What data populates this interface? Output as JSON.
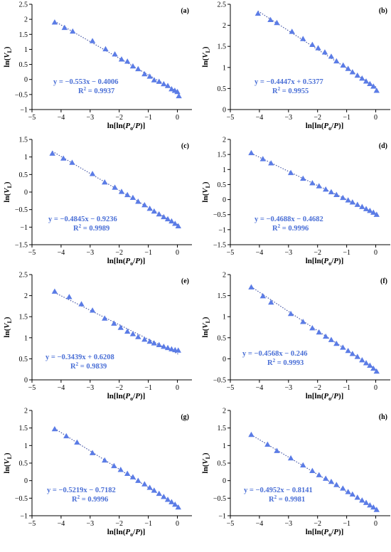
{
  "colors": {
    "marker": "#5b7ce6",
    "fit_line": "#4a5aa8",
    "equation": "#4a6fd6"
  },
  "chart_data": [
    {
      "type": "scatter",
      "panel": "(a)",
      "xlabel_base": "ln[ln(",
      "xlabel_var": "P",
      "xlabel_sub": "o",
      "xlabel_mid": "/",
      "xlabel_var2": "P",
      "xlabel_end": ")]",
      "ylabel_base": "ln(",
      "ylabel_var": "V",
      "ylabel_sub": "L",
      "ylabel_end": ")",
      "xlim": [
        -5,
        0.5
      ],
      "ylim": [
        -1,
        2.5
      ],
      "xticks": [
        "−5",
        "−4",
        "−3",
        "−2",
        "−1",
        "0"
      ],
      "yticks": [
        "−1",
        "−0.5",
        "0",
        "0.5",
        "1",
        "1.5",
        "2",
        "2.5"
      ],
      "x": [
        -4.22,
        -3.88,
        -3.6,
        -2.92,
        -2.47,
        -2.15,
        -1.92,
        -1.72,
        -1.53,
        -1.35,
        -1.13,
        -0.95,
        -0.8,
        -0.63,
        -0.47,
        -0.33,
        -0.2,
        -0.09,
        0.0,
        0.05
      ],
      "y": [
        1.9,
        1.72,
        1.6,
        1.28,
        1.01,
        0.84,
        0.67,
        0.6,
        0.44,
        0.35,
        0.18,
        0.1,
        -0.02,
        -0.07,
        -0.15,
        -0.21,
        -0.32,
        -0.37,
        -0.41,
        -0.55
      ],
      "fit": {
        "slope": -0.553,
        "intercept": -0.4006
      },
      "equation": "y = −0.553x − 0.4006",
      "r2_base": "R",
      "r2_exp": "2",
      "r2_value": " = 0.9937"
    },
    {
      "type": "scatter",
      "panel": "(b)",
      "xlabel_base": "ln[ln(",
      "xlabel_var": "P",
      "xlabel_sub": "o",
      "xlabel_mid": "/",
      "xlabel_var2": "P",
      "xlabel_end": ")]",
      "ylabel_base": "ln(",
      "ylabel_var": "V",
      "ylabel_sub": "L",
      "ylabel_end": ")",
      "xlim": [
        -5,
        0.5
      ],
      "ylim": [
        0,
        2.5
      ],
      "xticks": [
        "−5",
        "−4",
        "−3",
        "−2",
        "−1",
        "0"
      ],
      "yticks": [
        "0",
        "0.5",
        "1",
        "1.5",
        "2",
        "2.5"
      ],
      "x": [
        -4.05,
        -3.62,
        -3.4,
        -2.88,
        -2.5,
        -2.18,
        -1.98,
        -1.75,
        -1.53,
        -1.35,
        -1.12,
        -0.95,
        -0.8,
        -0.63,
        -0.47,
        -0.33,
        -0.2,
        -0.08,
        0.03
      ],
      "y": [
        2.28,
        2.13,
        2.06,
        1.85,
        1.68,
        1.54,
        1.46,
        1.36,
        1.26,
        1.15,
        1.05,
        0.97,
        0.89,
        0.81,
        0.74,
        0.67,
        0.61,
        0.55,
        0.45
      ],
      "fit": {
        "slope": -0.4447,
        "intercept": 0.5377
      },
      "equation": "y = −0.4447x + 0.5377",
      "r2_base": "R",
      "r2_exp": "2",
      "r2_value": " = 0.9955"
    },
    {
      "type": "scatter",
      "panel": "(c)",
      "xlabel_base": "ln[ln(",
      "xlabel_var": "P",
      "xlabel_sub": "o",
      "xlabel_mid": "/",
      "xlabel_var2": "P",
      "xlabel_end": ")]",
      "ylabel_base": "ln(",
      "ylabel_var": "V",
      "ylabel_sub": "L",
      "ylabel_end": ")",
      "xlim": [
        -5,
        0.5
      ],
      "ylim": [
        -1.5,
        1.5
      ],
      "xticks": [
        "−5",
        "−4",
        "−3",
        "−2",
        "−1",
        "0"
      ],
      "yticks": [
        "−1.5",
        "−1",
        "−0.5",
        "0",
        "0.5",
        "1",
        "1.5"
      ],
      "x": [
        -4.3,
        -3.92,
        -3.62,
        -2.92,
        -2.5,
        -2.15,
        -1.92,
        -1.72,
        -1.53,
        -1.35,
        -1.13,
        -0.95,
        -0.8,
        -0.63,
        -0.47,
        -0.33,
        -0.2,
        -0.08,
        0.03
      ],
      "y": [
        1.1,
        0.96,
        0.84,
        0.52,
        0.28,
        0.13,
        0.01,
        -0.08,
        -0.16,
        -0.27,
        -0.37,
        -0.47,
        -0.55,
        -0.63,
        -0.71,
        -0.77,
        -0.83,
        -0.9,
        -0.97
      ],
      "fit": {
        "slope": -0.4845,
        "intercept": -0.9236
      },
      "equation": "y = −0.4845x − 0.9236",
      "r2_base": "R",
      "r2_exp": "2",
      "r2_value": " = 0.9989"
    },
    {
      "type": "scatter",
      "panel": "(d)",
      "xlabel_base": "ln[ln(",
      "xlabel_var": "P",
      "xlabel_sub": "o",
      "xlabel_mid": "/",
      "xlabel_var2": "P",
      "xlabel_end": ")]",
      "ylabel_base": "ln(",
      "ylabel_var": "V",
      "ylabel_sub": "L",
      "ylabel_end": ")",
      "xlim": [
        -5,
        0.5
      ],
      "ylim": [
        -1.5,
        2
      ],
      "xticks": [
        "−5",
        "−4",
        "−3",
        "−2",
        "−1",
        "0"
      ],
      "yticks": [
        "−1.5",
        "−1",
        "−0.5",
        "0",
        "0.5",
        "1",
        "1.5",
        "2"
      ],
      "x": [
        -4.28,
        -3.88,
        -3.6,
        -2.92,
        -2.5,
        -2.18,
        -1.95,
        -1.72,
        -1.53,
        -1.35,
        -1.13,
        -0.95,
        -0.8,
        -0.63,
        -0.47,
        -0.33,
        -0.2,
        -0.08,
        0.03
      ],
      "y": [
        1.55,
        1.35,
        1.21,
        0.89,
        0.7,
        0.55,
        0.45,
        0.34,
        0.25,
        0.16,
        0.06,
        -0.02,
        -0.09,
        -0.17,
        -0.24,
        -0.31,
        -0.37,
        -0.43,
        -0.5
      ],
      "fit": {
        "slope": -0.4688,
        "intercept": -0.4682
      },
      "equation": "y = −0.4688x − 0.4682",
      "r2_base": "R",
      "r2_exp": "2",
      "r2_value": " = 0.9996"
    },
    {
      "type": "scatter",
      "panel": "(e)",
      "xlabel_base": "ln[ln(",
      "xlabel_var": "P",
      "xlabel_sub": "o",
      "xlabel_mid": "/",
      "xlabel_var2": "P",
      "xlabel_end": ")]",
      "ylabel_base": "ln(",
      "ylabel_var": "V",
      "ylabel_sub": "L",
      "ylabel_end": ")",
      "xlim": [
        -5,
        0.5
      ],
      "ylim": [
        0,
        2.5
      ],
      "xticks": [
        "−5",
        "−4",
        "−3",
        "−2",
        "−1",
        "0"
      ],
      "yticks": [
        "0",
        "0.5",
        "1",
        "1.5",
        "2",
        "2.5"
      ],
      "x": [
        -4.22,
        -3.72,
        -3.3,
        -2.92,
        -2.5,
        -2.18,
        -1.95,
        -1.72,
        -1.53,
        -1.35,
        -1.13,
        -0.95,
        -0.8,
        -0.63,
        -0.47,
        -0.33,
        -0.2,
        -0.08,
        0.03
      ],
      "y": [
        2.1,
        1.97,
        1.8,
        1.65,
        1.46,
        1.34,
        1.24,
        1.15,
        1.09,
        1.02,
        0.96,
        0.91,
        0.87,
        0.83,
        0.79,
        0.76,
        0.73,
        0.71,
        0.7
      ],
      "fit": {
        "slope": -0.3439,
        "intercept": 0.6208
      },
      "equation": "y = −0.3439x + 0.6208",
      "r2_base": "R",
      "r2_exp": "2",
      "r2_value": " = 0.9839"
    },
    {
      "type": "scatter",
      "panel": "(f)",
      "xlabel_base": "ln[ln(",
      "xlabel_var": "P",
      "xlabel_sub": "o",
      "xlabel_mid": "/",
      "xlabel_var2": "P",
      "xlabel_end": ")]",
      "ylabel_base": "ln(",
      "ylabel_var": "V",
      "ylabel_sub": "L",
      "ylabel_end": ")",
      "xlim": [
        -5,
        0.5
      ],
      "ylim": [
        -0.5,
        2
      ],
      "xticks": [
        "−5",
        "−4",
        "−3",
        "−2",
        "−1",
        "0"
      ],
      "yticks": [
        "−0.5",
        "0",
        "0.5",
        "1",
        "1.5",
        "2"
      ],
      "x": [
        -4.28,
        -3.88,
        -3.6,
        -2.92,
        -2.5,
        -2.18,
        -1.95,
        -1.72,
        -1.53,
        -1.35,
        -1.13,
        -0.95,
        -0.8,
        -0.63,
        -0.47,
        -0.33,
        -0.2,
        -0.08,
        0.03
      ],
      "y": [
        1.7,
        1.49,
        1.34,
        1.07,
        0.88,
        0.73,
        0.63,
        0.53,
        0.45,
        0.36,
        0.27,
        0.19,
        0.12,
        0.05,
        -0.03,
        -0.1,
        -0.16,
        -0.23,
        -0.3
      ],
      "fit": {
        "slope": -0.4568,
        "intercept": -0.246
      },
      "equation": "y = −0.4568x − 0.246",
      "r2_base": "R",
      "r2_exp": "2",
      "r2_value": " = 0.9993"
    },
    {
      "type": "scatter",
      "panel": "(g)",
      "xlabel_base": "ln[ln(",
      "xlabel_var": "P",
      "xlabel_sub": "o",
      "xlabel_mid": "/",
      "xlabel_var2": "P",
      "xlabel_end": ")]",
      "ylabel_base": "ln(",
      "ylabel_var": "V",
      "ylabel_sub": "L",
      "ylabel_end": ")",
      "xlim": [
        -5,
        0.5
      ],
      "ylim": [
        -1,
        2
      ],
      "xticks": [
        "−5",
        "−4",
        "−3",
        "−2",
        "−1",
        "0"
      ],
      "yticks": [
        "−1",
        "−0.5",
        "0",
        "0.5",
        "1",
        "1.5",
        "2"
      ],
      "x": [
        -4.22,
        -3.82,
        -3.45,
        -2.92,
        -2.5,
        -2.18,
        -1.95,
        -1.72,
        -1.53,
        -1.35,
        -1.13,
        -0.95,
        -0.8,
        -0.63,
        -0.47,
        -0.33,
        -0.2,
        -0.08,
        0.03
      ],
      "y": [
        1.47,
        1.27,
        1.09,
        0.79,
        0.58,
        0.42,
        0.31,
        0.2,
        0.1,
        0.0,
        -0.1,
        -0.2,
        -0.28,
        -0.37,
        -0.46,
        -0.54,
        -0.61,
        -0.68,
        -0.76
      ],
      "fit": {
        "slope": -0.5219,
        "intercept": -0.7182
      },
      "equation": "y = −0.5219x − 0.7182",
      "r2_base": "R",
      "r2_exp": "2",
      "r2_value": " = 0.9996"
    },
    {
      "type": "scatter",
      "panel": "(h)",
      "xlabel_base": "ln[ln(",
      "xlabel_var": "P",
      "xlabel_sub": "o",
      "xlabel_mid": "/",
      "xlabel_var2": "P",
      "xlabel_end": ")]",
      "ylabel_base": "ln(",
      "ylabel_var": "V",
      "ylabel_sub": "L",
      "ylabel_end": ")",
      "xlim": [
        -5,
        0.5
      ],
      "ylim": [
        -1,
        2
      ],
      "xticks": [
        "−5",
        "−4",
        "−3",
        "−2",
        "−1",
        "0"
      ],
      "yticks": [
        "−1",
        "−0.5",
        "0",
        "0.5",
        "1",
        "1.5",
        "2"
      ],
      "x": [
        -4.28,
        -3.72,
        -3.4,
        -2.92,
        -2.5,
        -2.18,
        -1.95,
        -1.72,
        -1.53,
        -1.35,
        -1.13,
        -0.95,
        -0.8,
        -0.63,
        -0.47,
        -0.33,
        -0.2,
        -0.08,
        0.03
      ],
      "y": [
        1.31,
        1.03,
        0.85,
        0.64,
        0.44,
        0.28,
        0.16,
        0.06,
        -0.03,
        -0.12,
        -0.22,
        -0.32,
        -0.39,
        -0.48,
        -0.56,
        -0.63,
        -0.7,
        -0.76,
        -0.83
      ],
      "fit": {
        "slope": -0.4952,
        "intercept": -0.8141
      },
      "equation": "y = −0.4952x − 0.8141",
      "r2_base": "R",
      "r2_exp": "2",
      "r2_value": " = 0.9981"
    }
  ]
}
